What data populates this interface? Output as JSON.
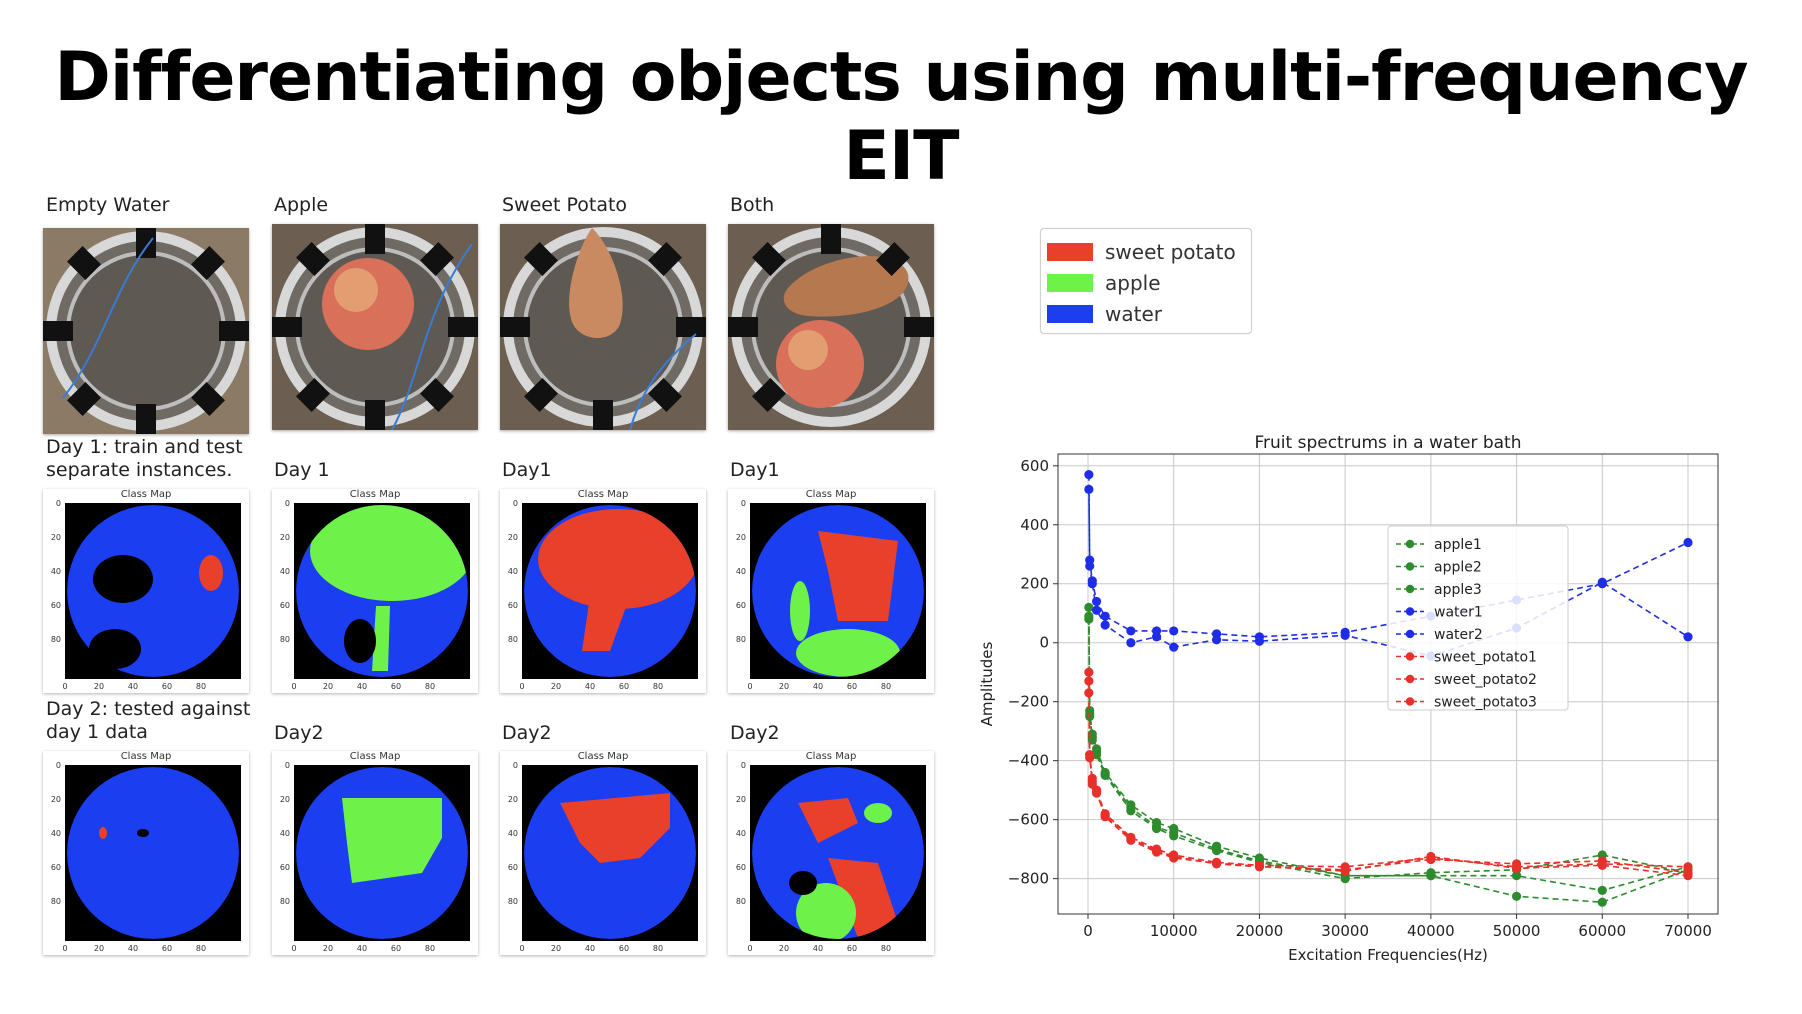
{
  "title": "Differentiating objects using multi-frequency EIT",
  "photos": {
    "labels": [
      "Empty Water",
      "Apple",
      "Sweet Potato",
      "Both"
    ]
  },
  "rows": [
    {
      "caption_lines": [
        "Day 1: train and test",
        "separate instances."
      ],
      "labels": [
        "Day 1",
        "Day1",
        "Day1"
      ]
    },
    {
      "caption_lines": [
        "Day 2: tested against",
        "day 1 data"
      ],
      "labels": [
        "Day2",
        "Day2",
        "Day2"
      ]
    }
  ],
  "class_map_title": "Class Map",
  "class_map_yticks": [
    "0",
    "20",
    "40",
    "60",
    "80"
  ],
  "class_map_xticks": [
    "0",
    "20",
    "40",
    "60",
    "80"
  ],
  "colors": {
    "sweet_potato": "#e8402a",
    "apple": "#6ef24a",
    "water": "#1a3ef0",
    "background": "#000000"
  },
  "class_legend": [
    {
      "label": "sweet potato",
      "color": "#e8402a"
    },
    {
      "label": "apple",
      "color": "#6ef24a"
    },
    {
      "label": "water",
      "color": "#1a3ef0"
    }
  ],
  "chart_data": {
    "type": "line",
    "title": "Fruit spectrums in a water bath",
    "xlabel": "Excitation Frequencies(Hz)",
    "ylabel": "Amplitudes",
    "xlim": [
      -3500,
      73500
    ],
    "ylim": [
      -920,
      640
    ],
    "xticks": [
      0,
      10000,
      20000,
      30000,
      40000,
      50000,
      60000,
      70000
    ],
    "yticks": [
      600,
      400,
      200,
      0,
      -200,
      -400,
      -600,
      -800
    ],
    "ytick_labels": [
      "600",
      "400",
      "200",
      "0",
      "−200",
      "−400",
      "−600",
      "−800"
    ],
    "grid": true,
    "legend_position": "center-right",
    "x": [
      100,
      200,
      500,
      1000,
      2000,
      5000,
      8000,
      10000,
      15000,
      20000,
      30000,
      40000,
      50000,
      60000,
      70000
    ],
    "series": [
      {
        "name": "apple1",
        "color": "#2e8b2e",
        "values": [
          80,
          -230,
          -310,
          -360,
          -440,
          -550,
          -610,
          -630,
          -690,
          -730,
          -790,
          -790,
          -790,
          -840,
          -760
        ]
      },
      {
        "name": "apple2",
        "color": "#2e8b2e",
        "values": [
          90,
          -240,
          -320,
          -370,
          -445,
          -560,
          -625,
          -645,
          -700,
          -740,
          -790,
          -790,
          -860,
          -880,
          -770
        ]
      },
      {
        "name": "apple3",
        "color": "#2e8b2e",
        "values": [
          120,
          -250,
          -330,
          -380,
          -450,
          -570,
          -630,
          -655,
          -705,
          -745,
          -800,
          -780,
          -770,
          -720,
          -780
        ]
      },
      {
        "name": "water1",
        "color": "#1f2ee6",
        "values": [
          520,
          280,
          210,
          140,
          90,
          40,
          40,
          40,
          30,
          20,
          35,
          90,
          145,
          200,
          340
        ]
      },
      {
        "name": "water2",
        "color": "#1f2ee6",
        "values": [
          570,
          260,
          200,
          110,
          60,
          0,
          20,
          -15,
          10,
          5,
          25,
          -45,
          50,
          205,
          20
        ]
      },
      {
        "name": "sweet_potato1",
        "color": "#e8302a",
        "values": [
          -100,
          -380,
          -460,
          -500,
          -580,
          -660,
          -700,
          -720,
          -745,
          -755,
          -760,
          -730,
          -760,
          -750,
          -760
        ]
      },
      {
        "name": "sweet_potato2",
        "color": "#e8302a",
        "values": [
          -130,
          -390,
          -470,
          -510,
          -585,
          -665,
          -705,
          -725,
          -750,
          -760,
          -770,
          -735,
          -750,
          -740,
          -780
        ]
      },
      {
        "name": "sweet_potato3",
        "color": "#e8302a",
        "values": [
          -170,
          -380,
          -480,
          -505,
          -590,
          -670,
          -710,
          -730,
          -748,
          -758,
          -775,
          -725,
          -765,
          -755,
          -790
        ]
      }
    ]
  }
}
